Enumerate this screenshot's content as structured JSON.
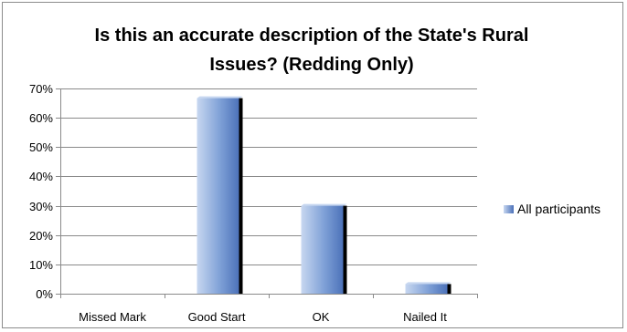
{
  "chart_data": {
    "type": "bar",
    "title": "Is this an accurate description of the State's Rural Issues? (Redding Only)",
    "title_lines": [
      "Is this an accurate description of the State's Rural",
      "Issues? (Redding Only)"
    ],
    "categories": [
      "Missed Mark",
      "Good Start",
      "OK",
      "Nailed It"
    ],
    "series": [
      {
        "name": "All participants",
        "values": [
          0,
          66.7,
          30,
          3.3
        ]
      }
    ],
    "ylim": [
      0,
      70
    ],
    "yticks": [
      0,
      10,
      20,
      30,
      40,
      50,
      60,
      70
    ],
    "ytick_labels": [
      "0%",
      "10%",
      "20%",
      "30%",
      "40%",
      "50%",
      "60%",
      "70%"
    ],
    "y_format": "percent",
    "grid": true,
    "legend_position": "right",
    "bar_style": "3d",
    "colors": {
      "bar_light": "#c7d7f0",
      "bar_mid": "#7d9fd6",
      "bar_dark": "#4a70b8",
      "bar_shadow": "#000000",
      "grid": "#8a8a8a",
      "axis": "#8a8a8a"
    }
  }
}
